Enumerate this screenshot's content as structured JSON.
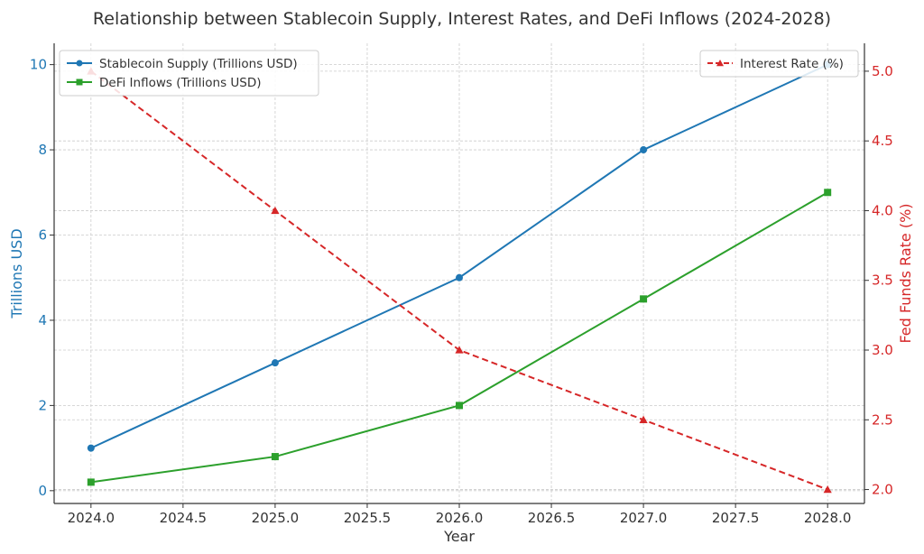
{
  "chart_data": {
    "type": "line",
    "title": "Relationship between Stablecoin Supply, Interest Rates, and DeFi Inflows (2024-2028)",
    "xlabel": "Year",
    "ylabel_left": "Trillions USD",
    "ylabel_right": "Fed Funds Rate (%)",
    "x": [
      2024,
      2025,
      2026,
      2027,
      2028
    ],
    "x_ticks": [
      "2024.0",
      "2024.5",
      "2025.0",
      "2025.5",
      "2026.0",
      "2026.5",
      "2027.0",
      "2027.5",
      "2028.0"
    ],
    "y_left_ticks": [
      "0",
      "2",
      "4",
      "6",
      "8",
      "10"
    ],
    "y_right_ticks": [
      "2.0",
      "2.5",
      "3.0",
      "3.5",
      "4.0",
      "4.5",
      "5.0"
    ],
    "xlim": [
      2023.8,
      2028.2
    ],
    "ylim_left": [
      -0.3,
      10.5
    ],
    "ylim_right": [
      1.9,
      5.2
    ],
    "grid": true,
    "series": [
      {
        "name": "Stablecoin Supply (Trillions USD)",
        "axis": "left",
        "color": "#1f77b4",
        "marker": "circle",
        "dash": "solid",
        "values": [
          1,
          3,
          5,
          8,
          10
        ]
      },
      {
        "name": "DeFi Inflows (Trillions USD)",
        "axis": "left",
        "color": "#2ca02c",
        "marker": "square",
        "dash": "solid",
        "values": [
          0.2,
          0.8,
          2,
          4.5,
          7
        ]
      },
      {
        "name": "Interest Rate (%)",
        "axis": "right",
        "color": "#d62728",
        "marker": "triangle",
        "dash": "dashed",
        "values": [
          5.0,
          4.0,
          3.0,
          2.5,
          2.0
        ]
      }
    ],
    "legend_left_placement": "top-left",
    "legend_right_placement": "top-right"
  }
}
